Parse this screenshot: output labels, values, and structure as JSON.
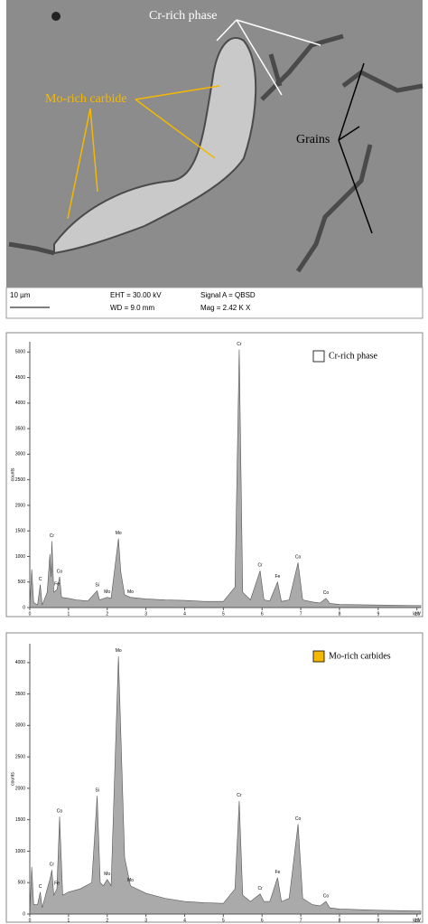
{
  "sem_image": {
    "labels": {
      "cr_rich": "Cr-rich phase",
      "mo_rich": "Mo-rich carbide",
      "grains": "Grains"
    },
    "scale_bar": "10 µm",
    "eht": "EHT = 30.00 kV",
    "wd": "WD = 9.0 mm",
    "signal": "Signal A = QBSD",
    "mag": "Mag = 2.42 K X"
  },
  "chart_data": [
    {
      "type": "area",
      "legend": "Cr-rich phase",
      "legend_color": "#ffffff",
      "y_label": "counts",
      "x_unit": "keV",
      "x": [
        0,
        0.05,
        0.1,
        0.2,
        0.27,
        0.32,
        0.45,
        0.52,
        0.55,
        0.57,
        0.62,
        0.7,
        0.77,
        0.82,
        1.0,
        1.2,
        1.5,
        1.74,
        1.8,
        2.0,
        2.1,
        2.29,
        2.35,
        2.45,
        2.6,
        3.0,
        3.5,
        4.0,
        4.5,
        5.0,
        5.3,
        5.41,
        5.5,
        5.7,
        5.95,
        6.05,
        6.2,
        6.4,
        6.5,
        6.7,
        6.93,
        7.05,
        7.3,
        7.5,
        7.65,
        7.75,
        8.0,
        9.0,
        10.0,
        10.1
      ],
      "series": [
        {
          "color": "#aaaaaa",
          "values": [
            0,
            750,
            100,
            50,
            450,
            50,
            300,
            1050,
            600,
            1300,
            300,
            350,
            600,
            200,
            180,
            150,
            130,
            330,
            150,
            200,
            180,
            1350,
            700,
            250,
            200,
            170,
            150,
            140,
            120,
            120,
            400,
            5050,
            300,
            150,
            720,
            150,
            130,
            500,
            120,
            150,
            880,
            150,
            110,
            90,
            180,
            80,
            60,
            50,
            40,
            40
          ]
        }
      ],
      "annotations": [
        {
          "text": "C",
          "x": 0.27
        },
        {
          "text": "Cr",
          "x": 0.57
        },
        {
          "text": "Fe",
          "x": 0.7
        },
        {
          "text": "Co",
          "x": 0.77
        },
        {
          "text": "Si",
          "x": 1.74
        },
        {
          "text": "Mo",
          "x": 2.0
        },
        {
          "text": "Mo",
          "x": 2.29
        },
        {
          "text": "Mo",
          "x": 2.6
        },
        {
          "text": "Cr",
          "x": 5.41
        },
        {
          "text": "Cr",
          "x": 5.95
        },
        {
          "text": "Fe",
          "x": 6.4
        },
        {
          "text": "Co",
          "x": 6.93
        },
        {
          "text": "Co",
          "x": 7.65
        }
      ],
      "xlim": [
        0,
        10.1
      ],
      "xticks": [
        0,
        1,
        2,
        3,
        4,
        5,
        6,
        7,
        8,
        9,
        10
      ],
      "ylim": [
        0,
        5200
      ],
      "yticks": [
        0,
        500,
        1000,
        1500,
        2000,
        2500,
        3000,
        3500,
        4000,
        4500,
        5000
      ]
    },
    {
      "type": "area",
      "legend": "Mo-rich carbides",
      "legend_color": "#f5b800",
      "y_label": "counts",
      "x_unit": "keV",
      "x": [
        0,
        0.05,
        0.1,
        0.2,
        0.27,
        0.32,
        0.45,
        0.52,
        0.57,
        0.62,
        0.7,
        0.77,
        0.85,
        1.0,
        1.3,
        1.6,
        1.74,
        1.82,
        1.9,
        2.0,
        2.1,
        2.29,
        2.4,
        2.45,
        2.6,
        3.0,
        3.5,
        4.0,
        4.5,
        5.0,
        5.3,
        5.41,
        5.5,
        5.7,
        5.95,
        6.05,
        6.2,
        6.4,
        6.5,
        6.7,
        6.93,
        7.05,
        7.3,
        7.5,
        7.65,
        7.75,
        8.0,
        9.0,
        10.0,
        10.1
      ],
      "series": [
        {
          "color": "#aaaaaa",
          "values": [
            0,
            750,
            150,
            150,
            350,
            100,
            400,
            550,
            700,
            300,
            400,
            1550,
            300,
            350,
            400,
            500,
            1880,
            500,
            450,
            550,
            450,
            4100,
            1900,
            900,
            450,
            330,
            250,
            200,
            180,
            170,
            400,
            1800,
            300,
            200,
            320,
            200,
            200,
            580,
            200,
            250,
            1430,
            250,
            150,
            130,
            200,
            100,
            80,
            60,
            50,
            50
          ]
        }
      ],
      "annotations": [
        {
          "text": "C",
          "x": 0.27
        },
        {
          "text": "Cr",
          "x": 0.57
        },
        {
          "text": "Fe",
          "x": 0.7
        },
        {
          "text": "Co",
          "x": 0.77
        },
        {
          "text": "Si",
          "x": 1.74
        },
        {
          "text": "Mo",
          "x": 2.0
        },
        {
          "text": "Mo",
          "x": 2.29
        },
        {
          "text": "Mo",
          "x": 2.6
        },
        {
          "text": "Cr",
          "x": 5.41
        },
        {
          "text": "Cr",
          "x": 5.95
        },
        {
          "text": "Fe",
          "x": 6.4
        },
        {
          "text": "Co",
          "x": 6.93
        },
        {
          "text": "Co",
          "x": 7.65
        }
      ],
      "xlim": [
        0,
        10.1
      ],
      "xticks": [
        0,
        1,
        2,
        3,
        4,
        5,
        6,
        7,
        8,
        9,
        10
      ],
      "ylim": [
        0,
        4300
      ],
      "yticks": [
        0,
        500,
        1000,
        1500,
        2000,
        2500,
        3000,
        3500,
        4000
      ]
    }
  ]
}
